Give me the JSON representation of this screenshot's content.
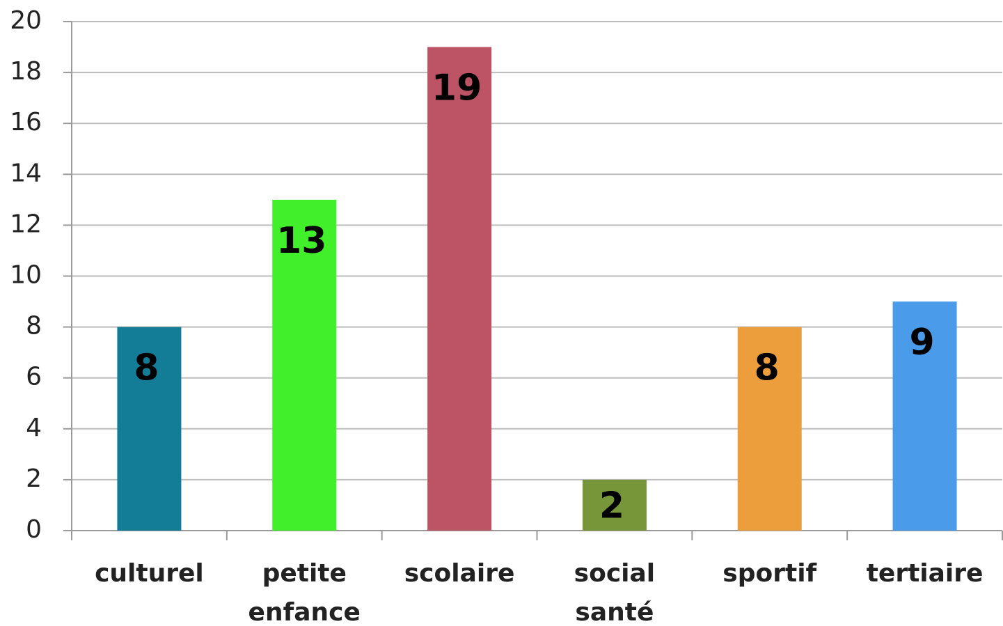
{
  "chart_data": {
    "type": "bar",
    "categories": [
      "culturel",
      "petite enfance",
      "scolaire",
      "social santé",
      "sportif",
      "tertiaire"
    ],
    "values": [
      8,
      13,
      19,
      2,
      8,
      9
    ],
    "colors": [
      "#137c96",
      "#41ef2a",
      "#bc5466",
      "#77963a",
      "#ec9e3c",
      "#4a9bea"
    ],
    "ylim": [
      0,
      20
    ],
    "yticks": [
      0,
      2,
      4,
      6,
      8,
      10,
      12,
      14,
      16,
      18,
      20
    ],
    "grid": true
  }
}
